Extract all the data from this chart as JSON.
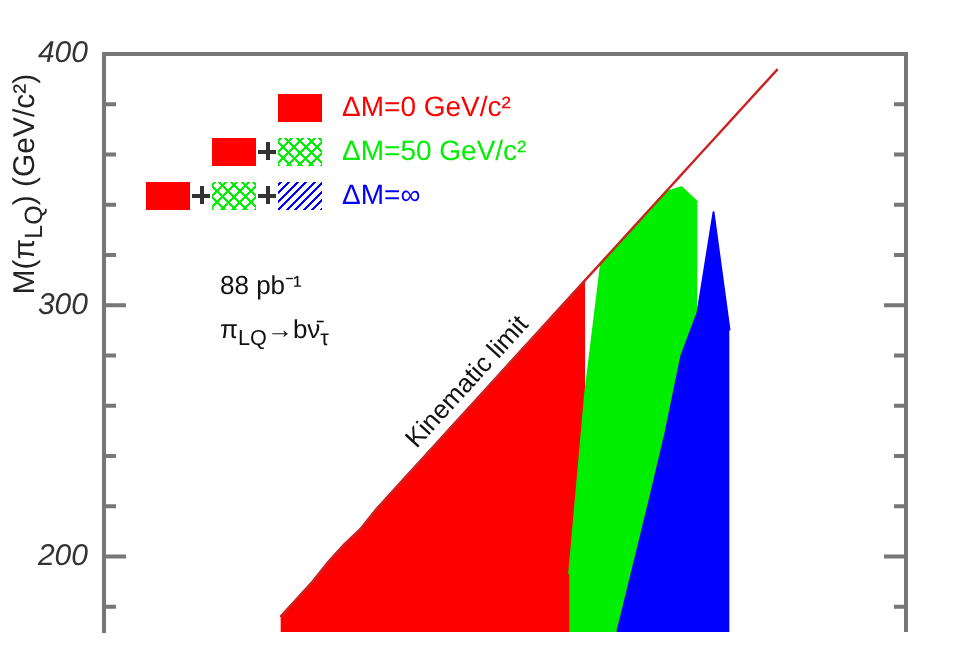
{
  "chart_data": {
    "type": "area",
    "ylabel": "M(π$_{LQ}$)  (GeV/c²)",
    "categories": [
      null,
      null,
      null,
      null,
      null,
      null,
      null,
      null,
      null,
      null,
      null,
      null,
      null,
      null,
      null,
      null,
      null,
      null,
      null,
      null,
      null,
      null,
      null,
      null,
      null,
      null,
      null,
      null,
      null,
      null,
      null,
      null,
      null,
      null,
      null,
      null,
      null,
      null,
      null,
      null,
      null,
      null,
      null,
      null,
      null,
      null,
      null,
      null,
      null,
      null,
      null
    ],
    "series": [
      {
        "name": "ΔM=0 GeV/c²",
        "color": "#ff0000",
        "values": [
          null,
          null,
          null,
          null,
          null,
          null,
          null,
          null,
          null,
          null,
          null,
          176,
          183,
          190,
          198,
          205,
          211,
          219,
          226,
          233,
          240,
          247,
          254,
          261,
          268,
          275,
          282,
          289,
          296,
          303,
          310,
          null,
          null,
          null,
          null,
          null,
          null,
          null,
          null,
          null,
          null,
          null,
          null,
          null,
          null,
          null,
          null,
          null,
          null,
          null,
          null
        ]
      },
      {
        "name": "ΔM=50 GeV/c²",
        "color": "#00ee00",
        "values": [
          null,
          null,
          null,
          null,
          null,
          null,
          null,
          null,
          null,
          null,
          null,
          null,
          null,
          null,
          null,
          null,
          null,
          null,
          null,
          null,
          null,
          null,
          null,
          null,
          null,
          null,
          null,
          null,
          null,
          193,
          265,
          317,
          324,
          331,
          338,
          345,
          347,
          341,
          null,
          null,
          null,
          null,
          null,
          null,
          null,
          null,
          null,
          null,
          null,
          null,
          null
        ]
      },
      {
        "name": "ΔM=∞",
        "color": "#0000ff",
        "values": [
          null,
          null,
          null,
          null,
          null,
          null,
          null,
          null,
          null,
          null,
          null,
          null,
          null,
          null,
          null,
          null,
          null,
          null,
          null,
          null,
          null,
          null,
          null,
          null,
          null,
          null,
          null,
          null,
          null,
          null,
          null,
          null,
          170,
          196,
          222,
          249,
          280,
          297,
          337,
          290,
          null,
          null,
          null,
          null,
          null,
          null,
          null,
          null,
          null,
          null,
          null
        ]
      },
      {
        "name": "Kinematic limit",
        "type": "line",
        "color": "#cc2222",
        "values": [
          null,
          null,
          null,
          null,
          null,
          null,
          null,
          null,
          null,
          null,
          null,
          176,
          183,
          190,
          198,
          205,
          211,
          219,
          226,
          233,
          240,
          247,
          254,
          261,
          268,
          275,
          282,
          289,
          296,
          303,
          310,
          317,
          324,
          331,
          338,
          345,
          352,
          359,
          366,
          373,
          380,
          387,
          394,
          null,
          null,
          null,
          null,
          null,
          null,
          null,
          null
        ]
      }
    ],
    "ylim": [
      170,
      400
    ],
    "yticks": [
      {
        "value": 180,
        "label": null
      },
      200,
      {
        "value": 220,
        "label": null
      },
      {
        "value": 240,
        "label": null
      },
      {
        "value": 260,
        "label": null
      },
      {
        "value": 280,
        "label": null
      },
      300,
      {
        "value": 320,
        "label": null
      },
      {
        "value": 340,
        "label": null
      },
      {
        "value": 360,
        "label": null
      },
      {
        "value": 380,
        "label": null
      },
      400
    ],
    "tick_labels": "y",
    "legend": "top left",
    "annotations": [
      "88 pb⁻¹",
      "π$_{LQ}$→bν̄$_{τ}$"
    ]
  }
}
